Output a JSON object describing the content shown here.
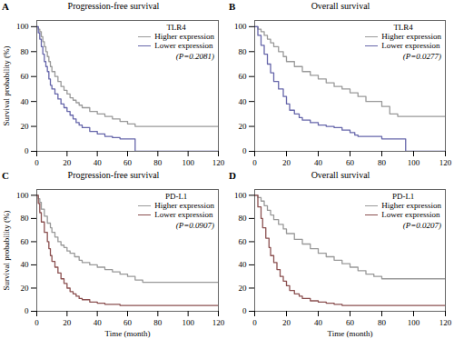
{
  "chart_data": [
    {
      "type": "step",
      "title": "Progression-free survival",
      "panel_label": "A",
      "ylabel": "Survival probability (%)",
      "legend": "upper right",
      "legend_title": "TLR4",
      "annotations": [
        "(P=0.2081)"
      ],
      "xlim": [
        0,
        120
      ],
      "ylim": [
        0,
        105
      ],
      "xticks": [
        0,
        20,
        40,
        60,
        80,
        100,
        120
      ],
      "yticks": [
        0,
        20,
        40,
        60,
        80,
        100
      ],
      "grid": false,
      "series": [
        {
          "name": "Higher expression",
          "color": "#999999",
          "x": [
            0,
            1,
            2,
            3,
            4,
            5,
            6,
            7,
            8,
            9,
            10,
            12,
            14,
            16,
            18,
            20,
            22,
            24,
            26,
            28,
            30,
            35,
            40,
            45,
            50,
            55,
            60,
            65,
            70,
            80,
            100,
            120
          ],
          "values": [
            100,
            98,
            96,
            92,
            88,
            84,
            80,
            76,
            72,
            68,
            64,
            60,
            56,
            52,
            49,
            46,
            43,
            41,
            39,
            37,
            35,
            32,
            30,
            28,
            26,
            24,
            22,
            20,
            20,
            20,
            20,
            20
          ]
        },
        {
          "name": "Lower expression",
          "color": "#6666aa",
          "x": [
            0,
            1,
            2,
            3,
            4,
            5,
            6,
            7,
            8,
            9,
            10,
            12,
            14,
            16,
            18,
            20,
            22,
            24,
            26,
            28,
            30,
            35,
            40,
            45,
            50,
            55,
            60,
            63,
            65,
            120
          ],
          "values": [
            100,
            95,
            90,
            84,
            78,
            72,
            68,
            64,
            58,
            53,
            50,
            46,
            42,
            38,
            35,
            32,
            29,
            26,
            23,
            21,
            19,
            16,
            14,
            12,
            11,
            10,
            10,
            10,
            0,
            0
          ]
        }
      ]
    },
    {
      "type": "step",
      "title": "Overall survival",
      "panel_label": "B",
      "legend": "upper right",
      "legend_title": "TLR4",
      "annotations": [
        "(P=0.0277)"
      ],
      "xlim": [
        0,
        120
      ],
      "ylim": [
        0,
        105
      ],
      "xticks": [
        0,
        20,
        40,
        60,
        80,
        100,
        120
      ],
      "yticks": [
        0,
        20,
        40,
        60,
        80,
        100
      ],
      "grid": false,
      "series": [
        {
          "name": "Higher expression",
          "color": "#999999",
          "x": [
            0,
            2,
            4,
            6,
            8,
            10,
            12,
            15,
            18,
            20,
            25,
            30,
            35,
            40,
            45,
            50,
            55,
            60,
            65,
            70,
            80,
            85,
            90,
            95,
            100,
            120
          ],
          "values": [
            100,
            98,
            96,
            93,
            90,
            87,
            84,
            80,
            76,
            72,
            68,
            64,
            61,
            58,
            55,
            52,
            50,
            47,
            44,
            40,
            36,
            30,
            28,
            28,
            28,
            28
          ]
        },
        {
          "name": "Lower expression",
          "color": "#6666aa",
          "x": [
            0,
            2,
            4,
            6,
            8,
            10,
            12,
            15,
            18,
            20,
            22,
            25,
            28,
            30,
            35,
            40,
            45,
            50,
            55,
            60,
            63,
            65,
            70,
            75,
            80,
            85,
            90,
            93,
            95,
            120
          ],
          "values": [
            100,
            93,
            85,
            78,
            70,
            63,
            56,
            50,
            44,
            38,
            33,
            30,
            27,
            25,
            23,
            21,
            20,
            19,
            17,
            15,
            13,
            12,
            12,
            12,
            10,
            10,
            10,
            10,
            0,
            0
          ]
        }
      ]
    },
    {
      "type": "step",
      "title": "Progression-free survival",
      "panel_label": "C",
      "xlabel": "Time (month)",
      "ylabel": "Survival probability (%)",
      "legend": "upper right",
      "legend_title": "PD-L1",
      "annotations": [
        "(P=0.0907)"
      ],
      "xlim": [
        0,
        120
      ],
      "ylim": [
        0,
        105
      ],
      "xticks": [
        0,
        20,
        40,
        60,
        80,
        100,
        120
      ],
      "yticks": [
        0,
        20,
        40,
        60,
        80,
        100
      ],
      "grid": false,
      "series": [
        {
          "name": "Higher expression",
          "color": "#999999",
          "x": [
            0,
            1,
            2,
            3,
            5,
            7,
            9,
            10,
            12,
            14,
            16,
            18,
            20,
            22,
            25,
            28,
            30,
            35,
            40,
            45,
            50,
            55,
            60,
            65,
            70,
            80,
            90,
            95,
            100,
            120
          ],
          "values": [
            100,
            97,
            94,
            88,
            82,
            76,
            72,
            68,
            64,
            60,
            57,
            55,
            52,
            50,
            47,
            44,
            42,
            40,
            38,
            36,
            34,
            32,
            30,
            27,
            25,
            25,
            25,
            25,
            25,
            25
          ]
        },
        {
          "name": "Lower expression",
          "color": "#8B5050",
          "x": [
            0,
            1,
            2,
            3,
            5,
            7,
            8,
            9,
            10,
            12,
            14,
            16,
            18,
            20,
            22,
            24,
            26,
            28,
            30,
            35,
            40,
            45,
            50,
            55,
            60,
            65,
            70,
            80,
            90,
            95,
            120
          ],
          "values": [
            100,
            93,
            85,
            77,
            68,
            60,
            54,
            48,
            43,
            38,
            33,
            28,
            24,
            20,
            17,
            15,
            13,
            11,
            10,
            8,
            7,
            6,
            6,
            5,
            5,
            5,
            5,
            5,
            5,
            5,
            5
          ]
        }
      ]
    },
    {
      "type": "step",
      "title": "Overall survival",
      "panel_label": "D",
      "xlabel": "Time (month)",
      "legend": "upper right",
      "legend_title": "PD-L1",
      "annotations": [
        "(P=0.0207)"
      ],
      "xlim": [
        0,
        120
      ],
      "ylim": [
        0,
        105
      ],
      "xticks": [
        0,
        20,
        40,
        60,
        80,
        100,
        120
      ],
      "yticks": [
        0,
        20,
        40,
        60,
        80,
        100
      ],
      "grid": false,
      "series": [
        {
          "name": "Higher expression",
          "color": "#999999",
          "x": [
            0,
            2,
            4,
            6,
            8,
            10,
            12,
            15,
            18,
            20,
            25,
            30,
            35,
            40,
            45,
            50,
            55,
            60,
            65,
            70,
            75,
            80,
            90,
            95,
            100,
            120
          ],
          "values": [
            100,
            98,
            95,
            91,
            87,
            83,
            79,
            75,
            71,
            67,
            62,
            58,
            54,
            50,
            47,
            44,
            41,
            38,
            35,
            32,
            30,
            28,
            28,
            28,
            28,
            28
          ]
        },
        {
          "name": "Lower expression",
          "color": "#8B5050",
          "x": [
            0,
            2,
            4,
            5,
            7,
            9,
            10,
            12,
            14,
            16,
            18,
            20,
            22,
            25,
            28,
            30,
            35,
            40,
            45,
            50,
            55,
            60,
            65,
            70,
            80,
            90,
            95,
            120
          ],
          "values": [
            100,
            90,
            80,
            72,
            63,
            55,
            48,
            42,
            36,
            30,
            26,
            22,
            18,
            15,
            13,
            11,
            9,
            8,
            7,
            6,
            5,
            5,
            5,
            5,
            5,
            5,
            5,
            5
          ]
        }
      ]
    }
  ]
}
